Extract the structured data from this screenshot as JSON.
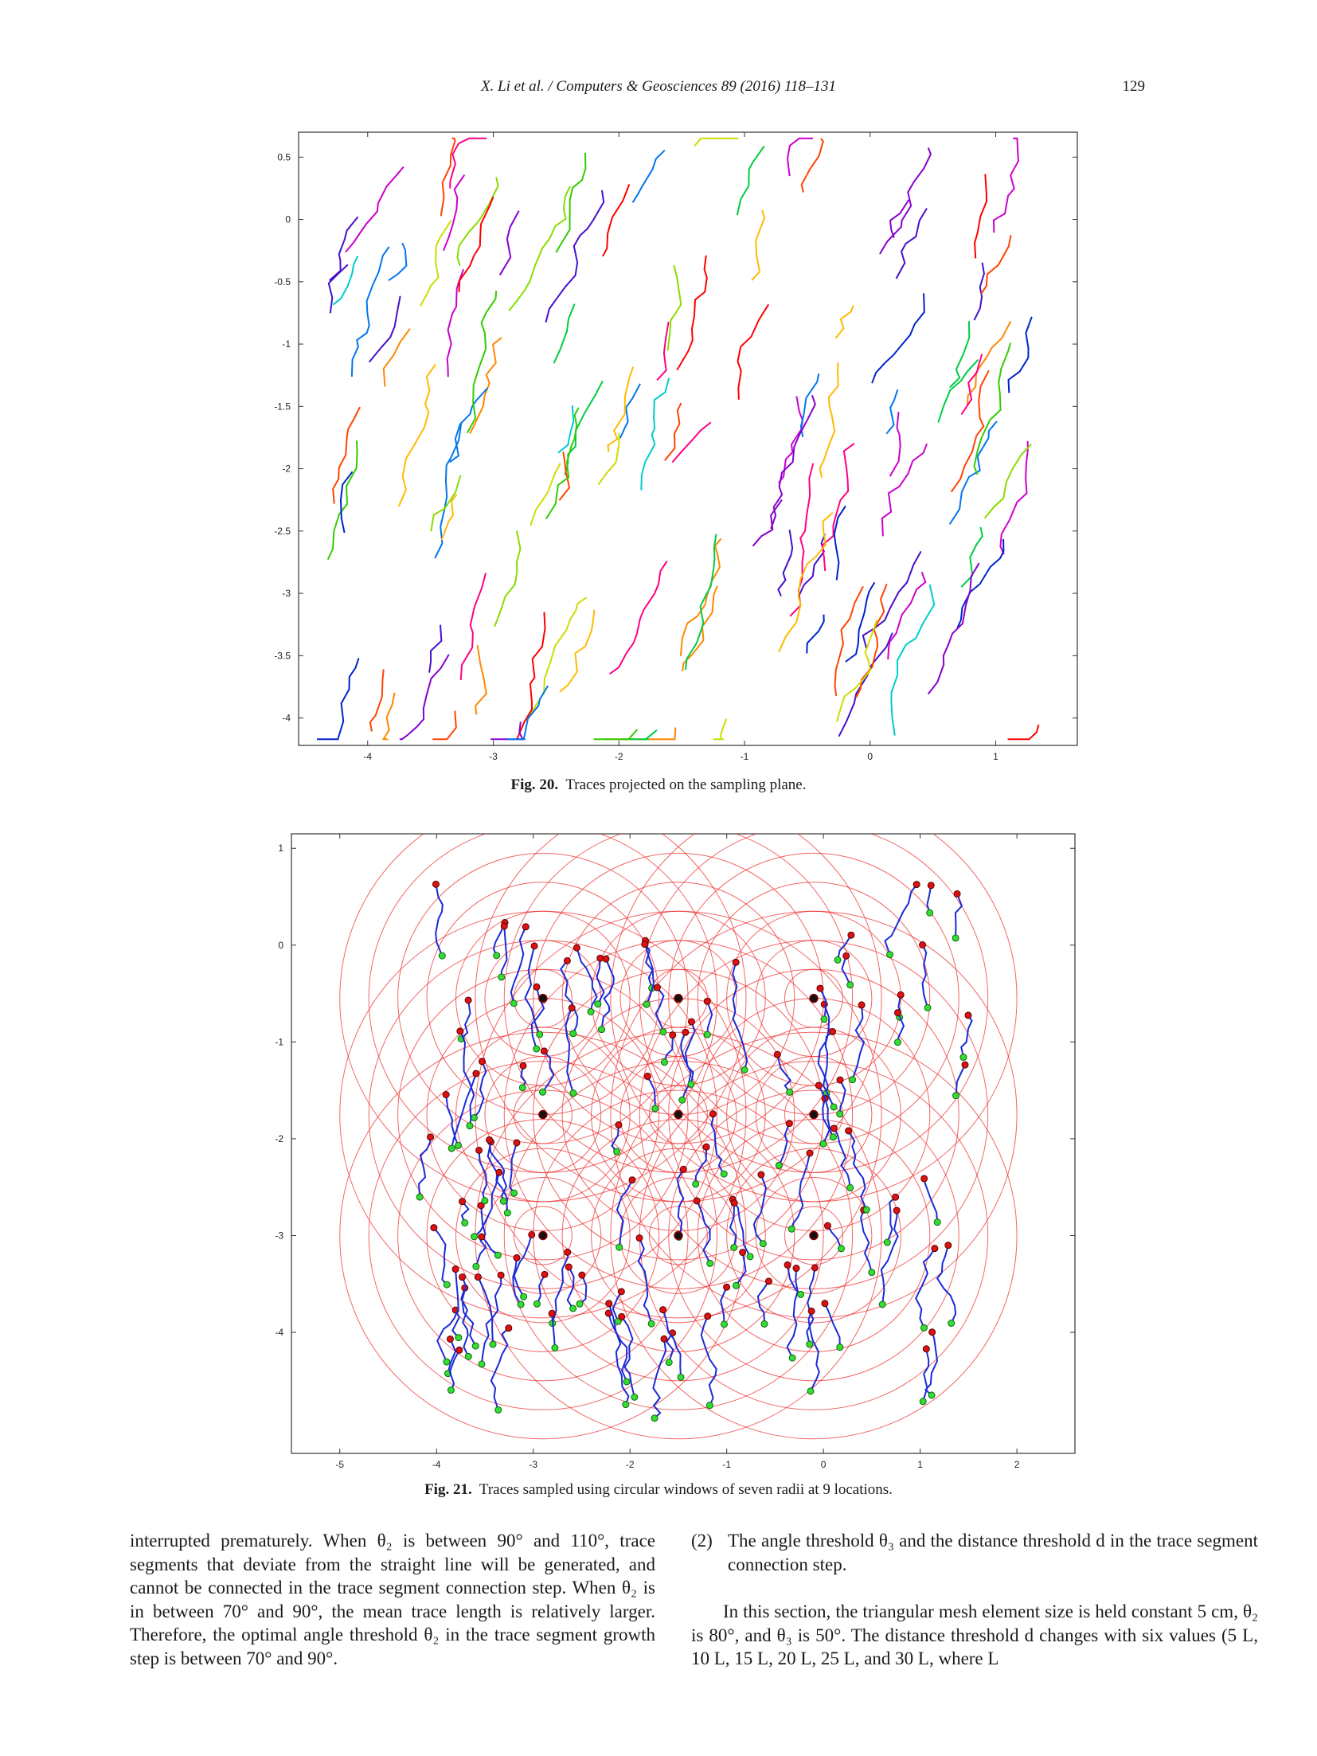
{
  "header": {
    "journal": "X. Li et al. / Computers & Geosciences 89 (2016) 118–131",
    "page_number": "129"
  },
  "figures": [
    {
      "id": "fig20",
      "label": "Fig. 20.",
      "caption": "Traces projected on the sampling plane.",
      "x_ticks": [
        "-4",
        "-3",
        "-2",
        "-1",
        "0",
        "1"
      ],
      "y_ticks": [
        "0.5",
        "0",
        "-0.5",
        "-1",
        "-1.5",
        "-2",
        "-2.5",
        "-3",
        "-3.5",
        "-4"
      ]
    },
    {
      "id": "fig21",
      "label": "Fig. 21.",
      "caption": "Traces sampled using circular windows of seven radii at 9 locations.",
      "x_ticks": [
        "-5",
        "-4",
        "-3",
        "-2",
        "-1",
        "0",
        "1",
        "2"
      ],
      "y_ticks": [
        "1",
        "0",
        "-1",
        "-2",
        "-3",
        "-4"
      ]
    }
  ],
  "body": {
    "left_column": "interrupted prematurely. When θ₂ is between 90° and 110°, trace segments that deviate from the straight line will be generated, and cannot be connected in the trace segment connection step. When θ₂ is in between 70° and 90°, the mean trace length is relatively larger. Therefore, the optimal angle threshold θ₂ in the trace segment growth step is between 70° and 90°.",
    "right_item_number": "(2)",
    "right_item_text": "The angle threshold θ₃ and the distance threshold d in the trace segment connection step.",
    "right_paragraph": "In this section, the triangular mesh element size is held constant 5 cm, θ₂ is 80°, and θ₃ is 50°. The distance threshold d changes with six values (5 L, 10 L, 15 L, 20 L, 25 L, and 30 L, where L"
  }
}
